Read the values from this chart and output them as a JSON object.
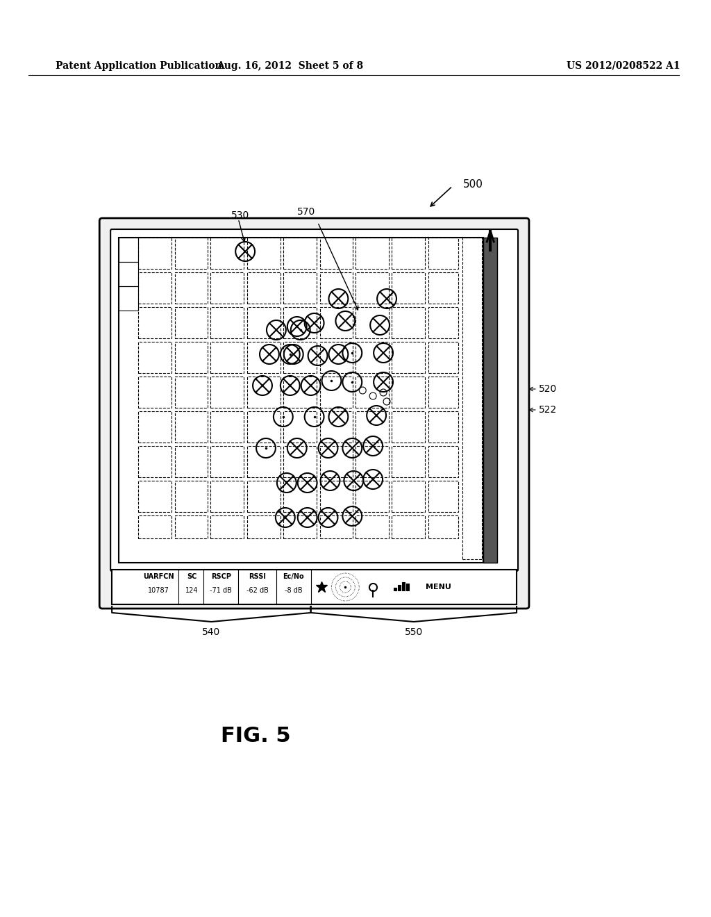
{
  "bg_color": "#ffffff",
  "header_left": "Patent Application Publication",
  "header_mid": "Aug. 16, 2012  Sheet 5 of 8",
  "header_right": "US 2012/0208522 A1",
  "fig_label": "FIG. 5",
  "label_500": "500",
  "label_520": "520",
  "label_522": "522",
  "label_530": "530",
  "label_540": "540",
  "label_550": "550",
  "label_570": "570",
  "status_bar": {
    "uarfcn_label": "UARFCN",
    "uarfcn_val": "10787",
    "sc_label": "SC",
    "sc_val": "124",
    "rscp_label": "RSCP",
    "rscp_val": "-71 dB",
    "rssi_label": "RSSI",
    "rssi_val": "-62 dB",
    "ecno_label": "Ec/No",
    "ecno_val": "-8 dB",
    "menu_label": "MENU"
  }
}
